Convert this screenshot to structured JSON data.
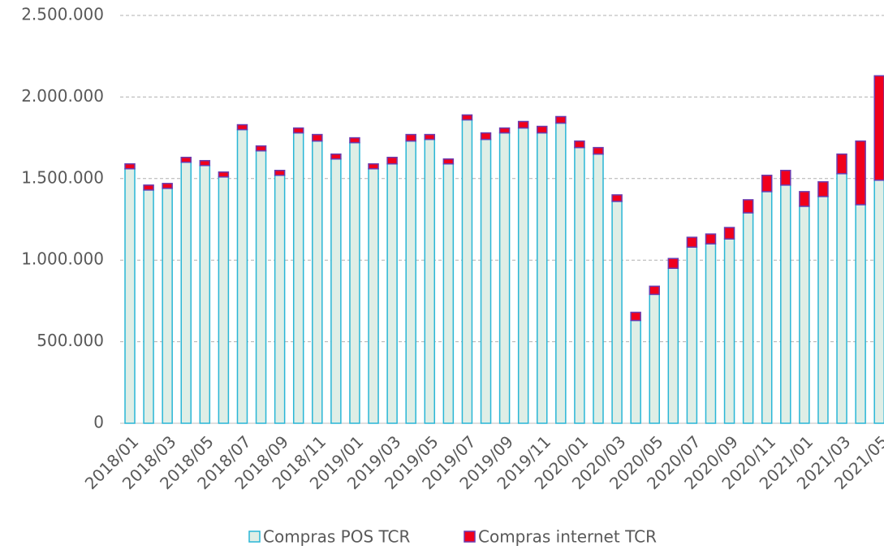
{
  "chart_data": {
    "type": "bar",
    "stacked": true,
    "categories": [
      "2018/01",
      null,
      "2018/03",
      null,
      "2018/05",
      null,
      "2018/07",
      null,
      "2018/09",
      null,
      "2018/11",
      null,
      "2019/01",
      null,
      "2019/03",
      null,
      "2019/05",
      null,
      "2019/07",
      null,
      "2019/09",
      null,
      "2019/11",
      null,
      "2020/01",
      null,
      "2020/03",
      null,
      "2020/05",
      null,
      "2020/07",
      null,
      "2020/09",
      null,
      "2020/11",
      null,
      "2021/01",
      null,
      "2021/03",
      null,
      "2021/05"
    ],
    "series": [
      {
        "name": "Compras POS TCR",
        "color": "#dfeee6",
        "edge": "#29b6d6",
        "values": [
          1560000,
          1430000,
          1440000,
          1600000,
          1580000,
          1510000,
          1800000,
          1670000,
          1520000,
          1780000,
          1730000,
          1620000,
          1720000,
          1560000,
          1590000,
          1730000,
          1740000,
          1590000,
          1860000,
          1740000,
          1780000,
          1810000,
          1780000,
          1840000,
          1690000,
          1650000,
          1360000,
          630000,
          790000,
          950000,
          1080000,
          1100000,
          1130000,
          1290000,
          1420000,
          1460000,
          1330000,
          1390000,
          1530000,
          1340000,
          1490000
        ]
      },
      {
        "name": "Compras internet TCR",
        "color": "#f0001c",
        "edge": "#6a3bb0",
        "values": [
          30000,
          30000,
          30000,
          30000,
          30000,
          30000,
          30000,
          30000,
          30000,
          30000,
          40000,
          30000,
          30000,
          30000,
          40000,
          40000,
          30000,
          30000,
          30000,
          40000,
          30000,
          40000,
          40000,
          40000,
          40000,
          40000,
          40000,
          50000,
          50000,
          60000,
          60000,
          60000,
          70000,
          80000,
          100000,
          90000,
          90000,
          90000,
          120000,
          390000,
          640000
        ]
      }
    ],
    "ylim": [
      0,
      2500000
    ],
    "yticks": [
      0,
      {
        "value": 500000,
        "label": "500.000"
      },
      {
        "value": 1000000,
        "label": "1.000.000"
      },
      {
        "value": 1500000,
        "label": "1.500.000"
      },
      {
        "value": 2000000,
        "label": "2.000.000"
      },
      {
        "value": 2500000,
        "label": "2.500.000"
      }
    ],
    "grid": true,
    "legend": "bottom"
  }
}
